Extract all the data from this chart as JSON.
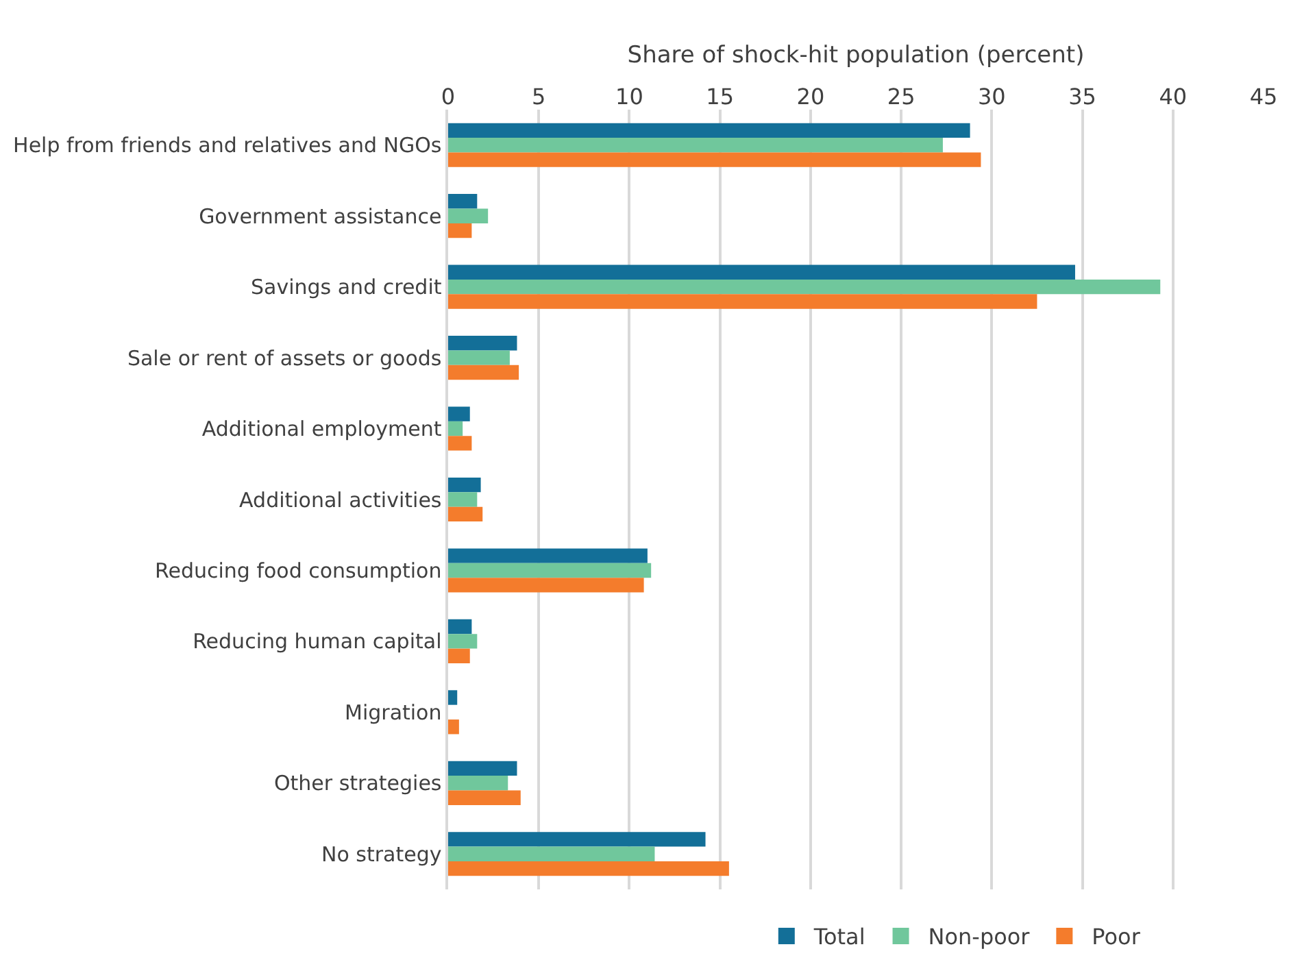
{
  "chart_data": {
    "type": "bar",
    "orientation": "horizontal",
    "xlabel": "Share of shock-hit population (percent)",
    "categories": [
      "Help from friends and relatives and NGOs",
      "Government assistance",
      "Savings and credit",
      "Sale or rent of assets or goods",
      "Additional employment",
      "Additional activities",
      "Reducing food consumption",
      "Reducing human capital",
      "Migration",
      "Other strategies",
      "No strategy"
    ],
    "series": [
      {
        "name": "Total",
        "color": "#136f98",
        "values": [
          28.8,
          1.6,
          34.6,
          3.8,
          1.2,
          1.8,
          11.0,
          1.3,
          0.5,
          3.8,
          14.2
        ]
      },
      {
        "name": "Non-poor",
        "color": "#70c79c",
        "values": [
          27.3,
          2.2,
          39.3,
          3.4,
          0.8,
          1.6,
          11.2,
          1.6,
          0.0,
          3.3,
          11.4
        ]
      },
      {
        "name": "Poor",
        "color": "#f47c2c",
        "values": [
          29.4,
          1.3,
          32.5,
          3.9,
          1.3,
          1.9,
          10.8,
          1.2,
          0.6,
          4.0,
          15.5
        ]
      }
    ],
    "xlim": [
      0,
      45
    ],
    "xticks": [
      0,
      5,
      10,
      15,
      20,
      25,
      30,
      35,
      40,
      45
    ],
    "grid": "x",
    "legend": "bottom"
  }
}
